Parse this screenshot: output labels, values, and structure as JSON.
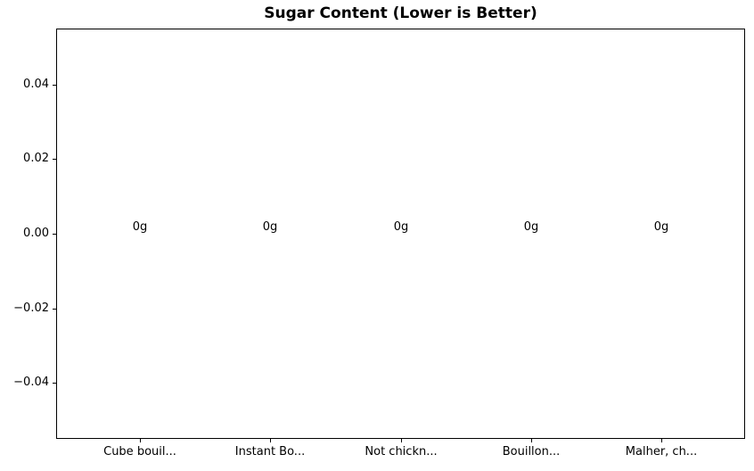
{
  "chart_data": {
    "type": "bar",
    "title": "Sugar Content (Lower is Better)",
    "categories": [
      "Cube bouil...",
      "Instant Bo...",
      "Not chickn...",
      "Bouillon...",
      "Malher, ch..."
    ],
    "values": [
      0,
      0,
      0,
      0,
      0
    ],
    "bar_labels": [
      "0g",
      "0g",
      "0g",
      "0g",
      "0g"
    ],
    "xlabel": "",
    "ylabel": "",
    "ylim": [
      -0.055,
      0.055
    ],
    "xlim": [
      -0.64,
      4.64
    ],
    "yticks": [
      0.04,
      0.02,
      0.0,
      -0.02,
      -0.04
    ],
    "ytick_labels": [
      "0.04",
      "0.02",
      "0.00",
      "−0.02",
      "−0.04"
    ],
    "bar_width": 0.8,
    "grid": false,
    "legend_position": "none",
    "colors": {
      "text": "#000000",
      "spine": "#000000",
      "background": "#ffffff",
      "bar": "#1f77b4"
    }
  }
}
